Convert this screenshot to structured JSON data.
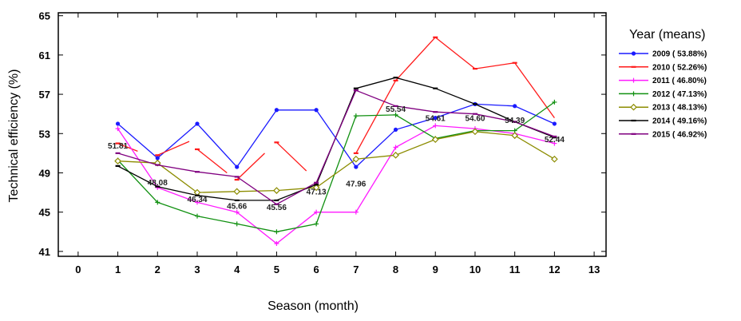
{
  "chart_data": {
    "type": "line",
    "xlabel": "Season (month)",
    "ylabel": "Technical efficiency (%)",
    "xlim": [
      -0.5,
      13.3
    ],
    "ylim": [
      40.5,
      65.3
    ],
    "xticks": [
      "0",
      "1",
      "2",
      "3",
      "4",
      "5",
      "6",
      "7",
      "8",
      "9",
      "10",
      "11",
      "12",
      "13"
    ],
    "yticks": [
      "41",
      "45",
      "49",
      "53",
      "57",
      "61",
      "65"
    ],
    "legend_title": "Year (means)",
    "legend_position": "right",
    "series": [
      {
        "name": "2009 ( 53.88%)",
        "color": "#1a1aff",
        "marker": "circle",
        "x": [
          1,
          2,
          3,
          4,
          5,
          6,
          7,
          8,
          9,
          10,
          11,
          12
        ],
        "y": [
          54.0,
          50.5,
          54.0,
          49.6,
          55.4,
          55.4,
          49.6,
          53.4,
          54.6,
          56.0,
          55.8,
          54.0
        ]
      },
      {
        "name": "2010 ( 52.26%)",
        "color": "#ff1a1a",
        "marker": "dash",
        "segments": [
          [
            [
              1,
              52.0
            ],
            [
              1.5,
              51.2
            ]
          ],
          [
            [
              2,
              50.8
            ],
            [
              2.8,
              52.2
            ]
          ],
          [
            [
              3,
              51.4
            ],
            [
              3.75,
              49.0
            ]
          ],
          [
            [
              4,
              48.3
            ],
            [
              4.7,
              51.0
            ]
          ],
          [
            [
              5,
              52.1
            ],
            [
              5.75,
              49.2
            ]
          ],
          [
            [
              7,
              51.0
            ],
            [
              8,
              58.4
            ]
          ],
          [
            [
              8,
              58.4
            ],
            [
              9,
              62.8
            ]
          ],
          [
            [
              9,
              62.8
            ],
            [
              10,
              59.6
            ]
          ],
          [
            [
              10,
              59.6
            ],
            [
              11,
              60.2
            ]
          ],
          [
            [
              11,
              60.2
            ],
            [
              12,
              54.6
            ]
          ]
        ]
      },
      {
        "name": "2011 ( 46.80%)",
        "color": "#ff1aff",
        "marker": "plus",
        "x": [
          1,
          2,
          3,
          4,
          5,
          6,
          7,
          8,
          9,
          10,
          11,
          12
        ],
        "y": [
          53.5,
          47.5,
          46.0,
          45.0,
          41.8,
          45.0,
          45.0,
          51.6,
          53.8,
          53.5,
          53.0,
          52.0
        ]
      },
      {
        "name": "2012 ( 47.13%)",
        "color": "#109010",
        "marker": "plus",
        "x": [
          1,
          2,
          3,
          4,
          5,
          6,
          7,
          8,
          9,
          10,
          11,
          12
        ],
        "y": [
          50.3,
          46.0,
          44.6,
          43.8,
          43.0,
          43.8,
          54.8,
          54.9,
          52.5,
          53.3,
          53.3,
          56.2
        ]
      },
      {
        "name": "2013 ( 48.13%)",
        "color": "#8c8c00",
        "marker": "diamond",
        "x": [
          1,
          2,
          3,
          4,
          5,
          6,
          7,
          8,
          9,
          10,
          11,
          12
        ],
        "y": [
          50.2,
          50.0,
          47.0,
          47.1,
          47.2,
          47.5,
          50.4,
          50.8,
          52.4,
          53.2,
          52.8,
          50.4
        ]
      },
      {
        "name": "2014 ( 49.16%)",
        "color": "#000000",
        "marker": "dash",
        "x": [
          1,
          2,
          3,
          4,
          5,
          6,
          7,
          8,
          9,
          10,
          11,
          12
        ],
        "y": [
          49.7,
          47.6,
          46.7,
          46.2,
          46.2,
          47.8,
          57.6,
          58.7,
          57.6,
          56.0,
          54.2,
          52.6
        ]
      },
      {
        "name": "2015 ( 46.92%)",
        "color": "#800080",
        "marker": "dash",
        "x": [
          1,
          2,
          3,
          4,
          5,
          6,
          7,
          8,
          9,
          10,
          11,
          12
        ],
        "y": [
          51.0,
          49.8,
          49.1,
          48.6,
          45.8,
          48.0,
          57.4,
          55.8,
          55.2,
          55.0,
          54.2,
          52.7
        ]
      }
    ],
    "annotations": [
      {
        "x": 1,
        "y": 51.81,
        "label": "51.81"
      },
      {
        "x": 2,
        "y": 48.08,
        "label": "48.08"
      },
      {
        "x": 3,
        "y": 46.34,
        "label": "46.34"
      },
      {
        "x": 4,
        "y": 45.66,
        "label": "45.66"
      },
      {
        "x": 5,
        "y": 45.56,
        "label": "45.56"
      },
      {
        "x": 6,
        "y": 47.13,
        "label": "47.13"
      },
      {
        "x": 7,
        "y": 47.96,
        "label": "47.96"
      },
      {
        "x": 8,
        "y": 55.54,
        "label": "55.54"
      },
      {
        "x": 9,
        "y": 54.61,
        "label": "54.61"
      },
      {
        "x": 10,
        "y": 54.6,
        "label": "54.60"
      },
      {
        "x": 11,
        "y": 54.39,
        "label": "54.39"
      },
      {
        "x": 12,
        "y": 52.44,
        "label": "52.44"
      }
    ]
  }
}
